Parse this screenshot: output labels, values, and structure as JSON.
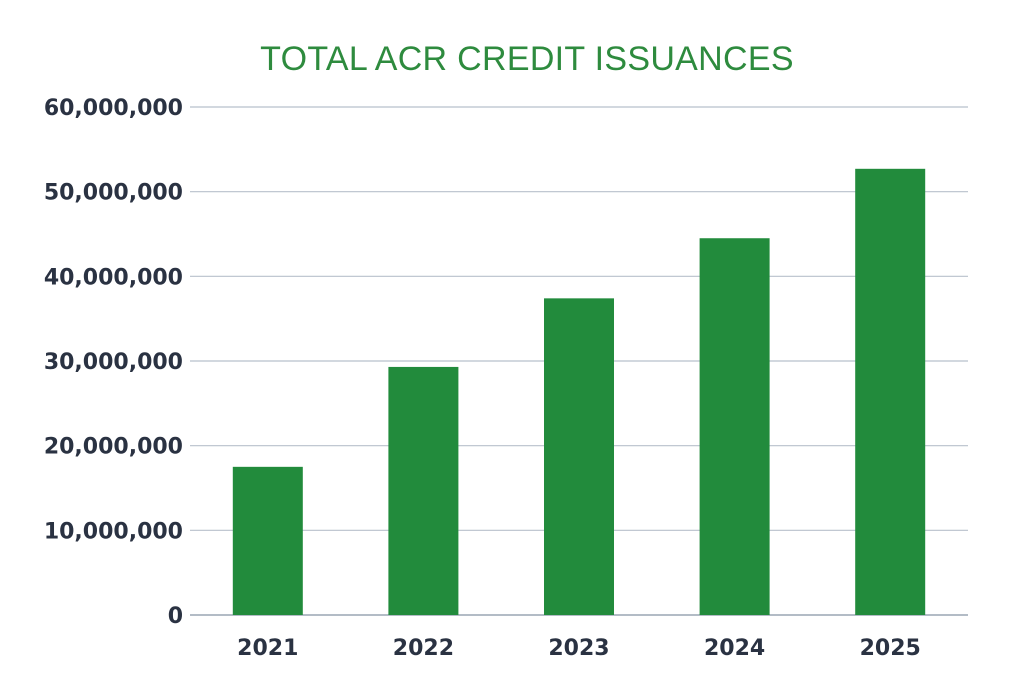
{
  "chart_data": {
    "type": "bar",
    "title": "TOTAL ACR CREDIT ISSUANCES",
    "xlabel": "",
    "ylabel": "",
    "categories": [
      "2021",
      "2022",
      "2023",
      "2024",
      "2025"
    ],
    "values": [
      17500000,
      29300000,
      37400000,
      44500000,
      52700000
    ],
    "ylim": [
      0,
      60000000
    ],
    "yticks": [
      0,
      10000000,
      20000000,
      30000000,
      40000000,
      50000000,
      60000000
    ],
    "ytick_labels": [
      "0",
      "10,000,000",
      "20,000,000",
      "30,000,000",
      "40,000,000",
      "50,000,000",
      "60,000,000"
    ],
    "grid": true,
    "legend": "none",
    "colors": {
      "bar": "#228B3C",
      "title": "#2E8B3E",
      "grid": "#B8C1CC",
      "tick_text": "#2A3242"
    }
  }
}
